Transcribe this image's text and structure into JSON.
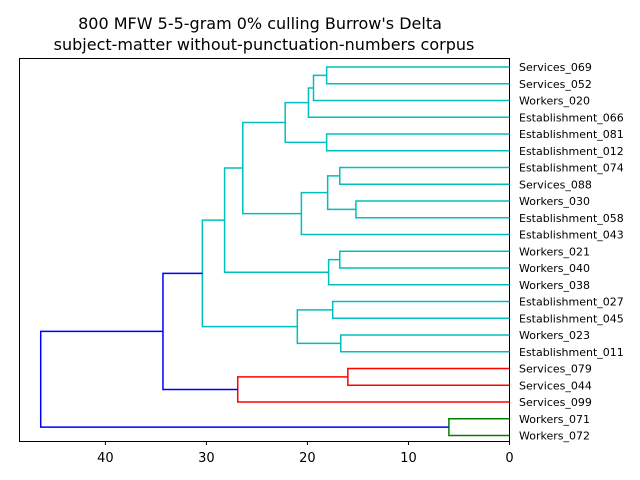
{
  "chart_data": {
    "type": "dendrogram",
    "title_line1": "800 MFW 5-5-gram 0% culling Burrow's Delta",
    "title_line2": "subject-matter without-punctuation-numbers corpus",
    "xlabel": "",
    "ylabel": "",
    "xlim": [
      48.5,
      0
    ],
    "xticks": [
      40,
      30,
      20,
      10,
      0
    ],
    "orientation": "left",
    "leaves": [
      "Services_069",
      "Services_052",
      "Workers_020",
      "Establishment_066",
      "Establishment_081",
      "Establishment_012",
      "Establishment_074",
      "Services_088",
      "Workers_030",
      "Establishment_058",
      "Establishment_043",
      "Workers_021",
      "Workers_040",
      "Workers_038",
      "Establishment_027",
      "Establishment_045",
      "Workers_023",
      "Establishment_011",
      "Services_079",
      "Services_044",
      "Services_099",
      "Workers_071",
      "Workers_072"
    ],
    "colors": {
      "cyan": "#00bfbf",
      "red": "#ff0000",
      "green": "#008000",
      "blue": "#0000ff"
    },
    "merges": [
      {
        "id": "n1",
        "left": "Services_069",
        "right": "Services_052",
        "height": 18.1,
        "color": "cyan"
      },
      {
        "id": "n2",
        "left": "n1",
        "right": "Workers_020",
        "height": 19.4,
        "color": "cyan"
      },
      {
        "id": "n3",
        "left": "n2",
        "right": "Establishment_066",
        "height": 19.9,
        "color": "cyan"
      },
      {
        "id": "n4",
        "left": "Establishment_081",
        "right": "Establishment_012",
        "height": 18.1,
        "color": "cyan"
      },
      {
        "id": "n5",
        "left": "n3",
        "right": "n4",
        "height": 22.2,
        "color": "cyan"
      },
      {
        "id": "n6",
        "left": "Establishment_074",
        "right": "Services_088",
        "height": 16.8,
        "color": "cyan"
      },
      {
        "id": "n7",
        "left": "Workers_030",
        "right": "Establishment_058",
        "height": 15.2,
        "color": "cyan"
      },
      {
        "id": "n8",
        "left": "n6",
        "right": "n7",
        "height": 18.0,
        "color": "cyan"
      },
      {
        "id": "n9",
        "left": "n8",
        "right": "Establishment_043",
        "height": 20.6,
        "color": "cyan"
      },
      {
        "id": "n10",
        "left": "n5",
        "right": "n9",
        "height": 26.4,
        "color": "cyan"
      },
      {
        "id": "n11",
        "left": "Workers_021",
        "right": "Workers_040",
        "height": 16.8,
        "color": "cyan"
      },
      {
        "id": "n12",
        "left": "n11",
        "right": "Workers_038",
        "height": 17.9,
        "color": "cyan"
      },
      {
        "id": "n13",
        "left": "n10",
        "right": "n12",
        "height": 28.2,
        "color": "cyan"
      },
      {
        "id": "n14",
        "left": "Establishment_027",
        "right": "Establishment_045",
        "height": 17.5,
        "color": "cyan"
      },
      {
        "id": "n15",
        "left": "Workers_023",
        "right": "Establishment_011",
        "height": 16.7,
        "color": "cyan"
      },
      {
        "id": "n16",
        "left": "n14",
        "right": "n15",
        "height": 21.0,
        "color": "cyan"
      },
      {
        "id": "n17",
        "left": "n13",
        "right": "n16",
        "height": 30.4,
        "color": "cyan"
      },
      {
        "id": "n18",
        "left": "Services_079",
        "right": "Services_044",
        "height": 16.0,
        "color": "red"
      },
      {
        "id": "n19",
        "left": "n18",
        "right": "Services_099",
        "height": 26.9,
        "color": "red"
      },
      {
        "id": "n20",
        "left": "n17",
        "right": "n19",
        "height": 34.3,
        "color": "blue"
      },
      {
        "id": "n21",
        "left": "Workers_071",
        "right": "Workers_072",
        "height": 6.0,
        "color": "green"
      },
      {
        "id": "n22",
        "left": "n20",
        "right": "n21",
        "height": 46.4,
        "color": "blue"
      }
    ]
  }
}
